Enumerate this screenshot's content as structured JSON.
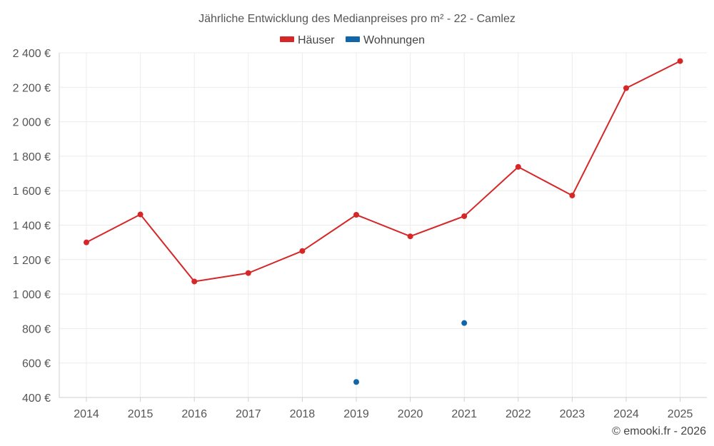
{
  "chart_data": {
    "type": "line",
    "title": "Jährliche Entwicklung des Medianpreises pro m² - 22 - Camlez",
    "categories": [
      "2014",
      "2015",
      "2016",
      "2017",
      "2018",
      "2019",
      "2020",
      "2021",
      "2022",
      "2023",
      "2024",
      "2025"
    ],
    "y_ticks": [
      400,
      600,
      800,
      1000,
      1200,
      1400,
      1600,
      1800,
      2000,
      2200,
      2400
    ],
    "y_tick_labels": [
      "400 €",
      "600 €",
      "800 €",
      "1 000 €",
      "1 200 €",
      "1 400 €",
      "1 600 €",
      "1 800 €",
      "2 000 €",
      "2 200 €",
      "2 400 €"
    ],
    "ylim": [
      400,
      2400
    ],
    "grid": true,
    "legend_position": "top-center",
    "series": [
      {
        "name": "Häuser",
        "color": "#d62728",
        "values": [
          1300,
          1462,
          1073,
          1122,
          1250,
          1460,
          1335,
          1452,
          1738,
          1572,
          2195,
          2352
        ]
      },
      {
        "name": "Wohnungen",
        "color": "#1066a8",
        "values": [
          null,
          null,
          null,
          null,
          null,
          490,
          null,
          832,
          null,
          null,
          null,
          null
        ]
      }
    ],
    "credit": "© emooki.fr - 2026"
  }
}
